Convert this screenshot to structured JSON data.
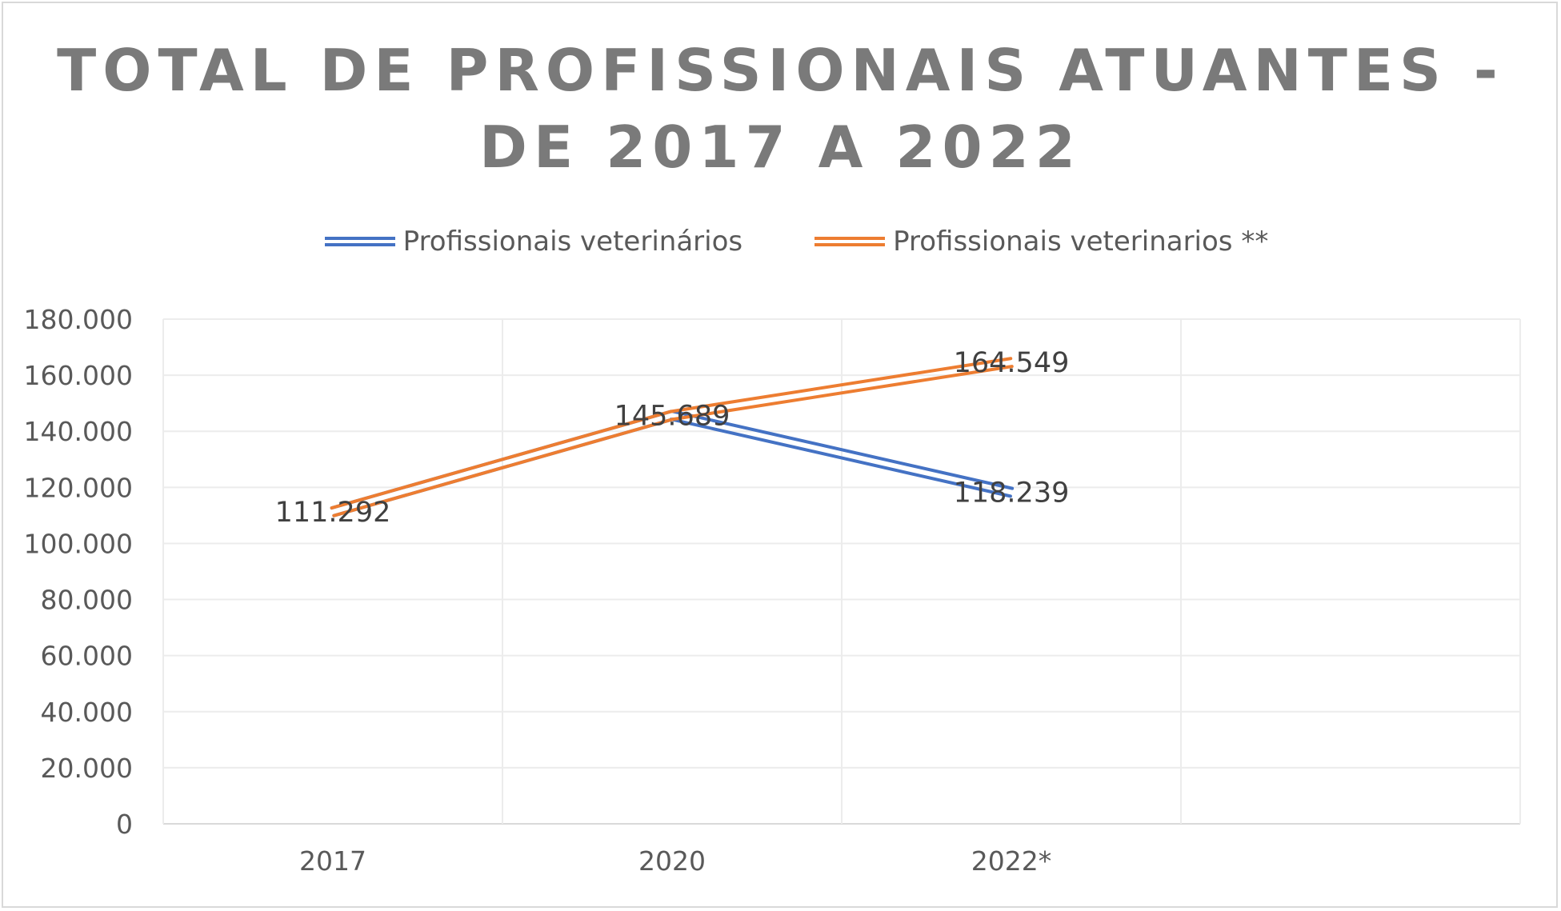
{
  "chart_data": {
    "type": "line",
    "title": "TOTAL DE PROFISSIONAIS ATUANTES - DE 2017 A 2022",
    "title_lines": [
      "TOTAL DE PROFISSIONAIS ATUANTES -",
      "DE 2017 A 2022"
    ],
    "categories": [
      "2017",
      "2020",
      "2022*",
      ""
    ],
    "series": [
      {
        "name": "Profissionais veterinários",
        "color": "#4472c4",
        "values": [
          111292,
          145689,
          118239,
          null
        ],
        "labels": [
          null,
          null,
          "118.239",
          null
        ]
      },
      {
        "name": "Profissionais veterinarios **",
        "color": "#ed7d31",
        "values": [
          111292,
          145689,
          164549,
          null
        ],
        "labels": [
          "111.292",
          "145.689",
          "164.549",
          null
        ]
      }
    ],
    "ylim": [
      0,
      180000
    ],
    "yticks": [
      0,
      20000,
      40000,
      60000,
      80000,
      100000,
      120000,
      140000,
      160000,
      180000
    ],
    "ytick_labels": [
      "0",
      "20.000",
      "40.000",
      "60.000",
      "80.000",
      "100.000",
      "120.000",
      "140.000",
      "160.000",
      "180.000"
    ],
    "xlabel": "",
    "ylabel": "",
    "grid": true,
    "legend": "top"
  }
}
